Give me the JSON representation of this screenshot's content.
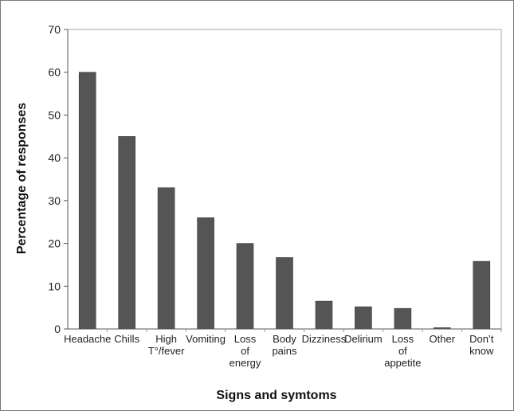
{
  "chart_data": {
    "type": "bar",
    "title": "",
    "xlabel": "Signs and symtoms",
    "ylabel": "Percentage of responses",
    "ylim": [
      0,
      70
    ],
    "yticks": [
      0,
      10,
      20,
      30,
      40,
      50,
      60,
      70
    ],
    "grid": false,
    "bar_color": "#555555",
    "categories": [
      [
        "Headache"
      ],
      [
        "Chills"
      ],
      [
        "High",
        "T°/fever"
      ],
      [
        "Vomiting"
      ],
      [
        "Loss",
        "of",
        "energy"
      ],
      [
        "Body",
        "pains"
      ],
      [
        "Dizziness"
      ],
      [
        "Delirium"
      ],
      [
        "Loss",
        "of",
        "appetite"
      ],
      [
        "Other"
      ],
      [
        "Don’t",
        "know"
      ]
    ],
    "values": [
      60,
      45,
      33,
      26,
      20,
      16.7,
      6.5,
      5.2,
      4.8,
      0.3,
      15.8
    ]
  }
}
